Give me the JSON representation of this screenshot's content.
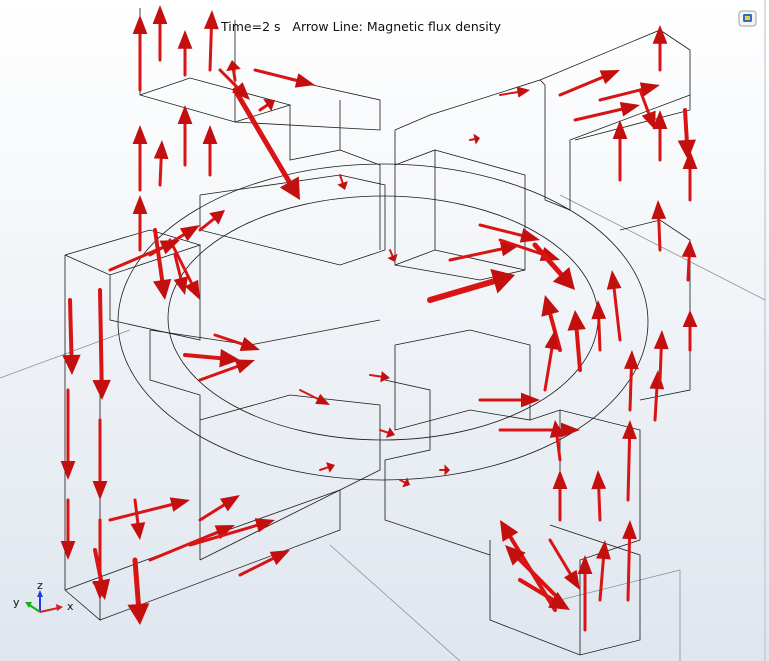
{
  "plot_title": "Time=2 s   Arrow Line: Magnetic flux density",
  "axis_triad": {
    "z": "z",
    "y": "y",
    "x": "x"
  }
}
